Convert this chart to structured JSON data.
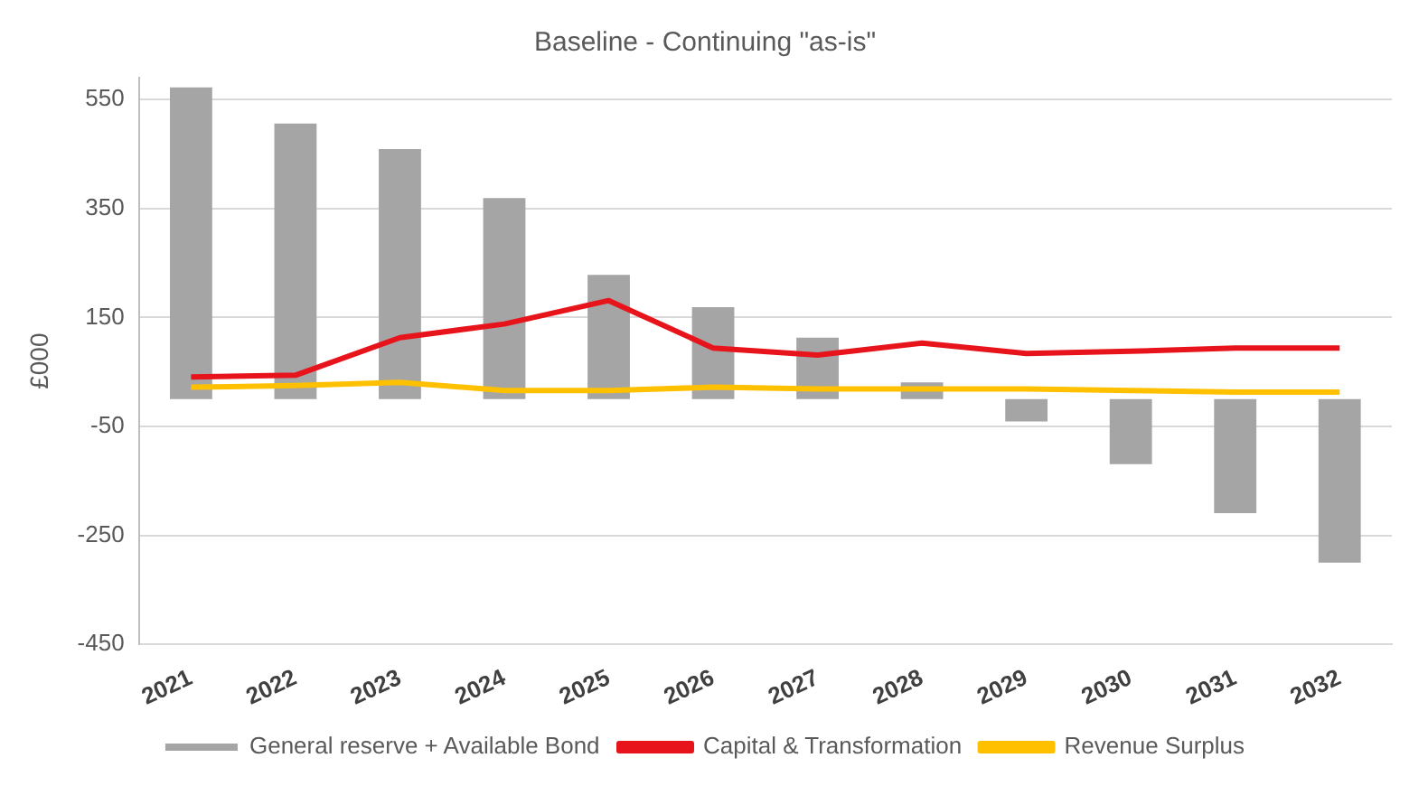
{
  "chart_data": {
    "type": "bar",
    "title": "Baseline - Continuing \"as-is\"",
    "ylabel": "£000",
    "categories": [
      "2021",
      "2022",
      "2023",
      "2024",
      "2025",
      "2026",
      "2027",
      "2028",
      "2029",
      "2030",
      "2031",
      "2032"
    ],
    "series": [
      {
        "name": "General reserve + Available Bond",
        "color": "#a5a5a5",
        "values": [
          572,
          506,
          459,
          369,
          228,
          169,
          113,
          31,
          -41,
          -119,
          -209,
          -300
        ]
      },
      {
        "name": "Capital & Transformation",
        "type": "line",
        "color": "#e8141c",
        "values": [
          41,
          44,
          113,
          138,
          181,
          94,
          81,
          103,
          84,
          88,
          94,
          94
        ]
      },
      {
        "name": "Revenue Surplus",
        "type": "line",
        "color": "#ffc000",
        "values": [
          22,
          25,
          31,
          16,
          16,
          22,
          19,
          19,
          19,
          16,
          13,
          13
        ]
      }
    ],
    "ylim": [
      -450,
      590
    ],
    "yticks": [
      -450,
      -250,
      -50,
      150,
      350,
      550
    ],
    "grid": "y",
    "legend": "bottom",
    "marker": "none"
  }
}
